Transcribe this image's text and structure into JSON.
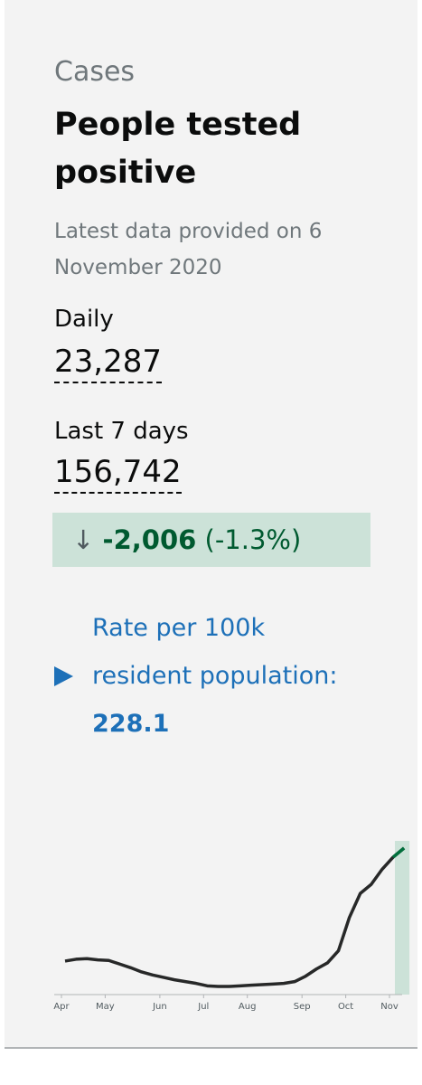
{
  "card": {
    "category": "Cases",
    "title": "People tested positive",
    "updated": "Latest data provided on 6 November 2020",
    "metrics": [
      {
        "label": "Daily",
        "value": "23,287"
      },
      {
        "label": "Last 7 days",
        "value": "156,742"
      }
    ],
    "change": {
      "value": "-2,006",
      "percent": "(-1.3%)"
    },
    "rate": {
      "label": "Rate per 100k resident population:",
      "value": "228.1"
    }
  },
  "chart_data": {
    "type": "line",
    "categories": [
      "Apr",
      null,
      null,
      null,
      "May",
      null,
      null,
      null,
      null,
      "Jun",
      null,
      null,
      null,
      "Jul",
      null,
      null,
      null,
      "Aug",
      null,
      null,
      null,
      null,
      "Sep",
      null,
      null,
      null,
      "Oct",
      null,
      null,
      null,
      "Nov",
      null
    ],
    "series": [
      {
        "name": null,
        "color": "#272828",
        "values": [
          4800,
          5100,
          5200,
          5000,
          4900,
          4300,
          3700,
          3000,
          2500,
          2100,
          1700,
          1400,
          1100,
          700,
          600,
          600,
          700,
          800,
          900,
          1000,
          1100,
          1400,
          2300,
          3500,
          4500,
          6500,
          12000,
          16000,
          17500,
          20000,
          22000,
          23500
        ]
      }
    ],
    "highlight_color": "#cce2d8",
    "ylim": [
      0,
      25000
    ]
  }
}
